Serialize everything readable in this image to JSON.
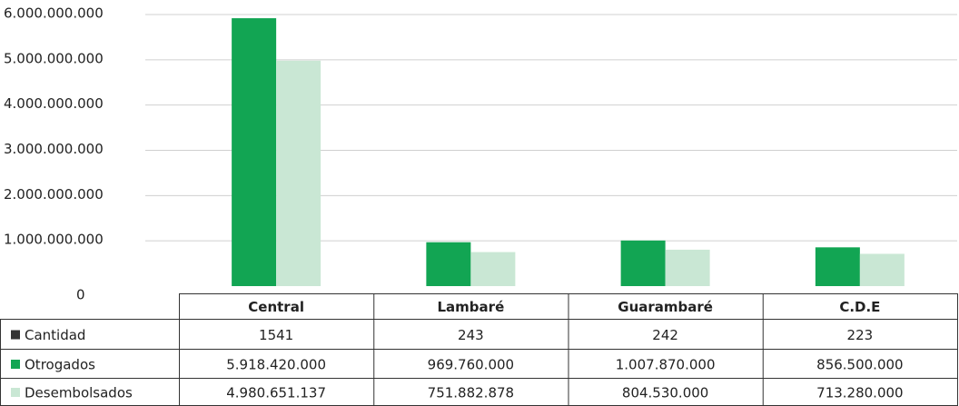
{
  "chart_data": {
    "type": "bar",
    "categories": [
      "Central",
      "Lambaré",
      "Guarambaré",
      "C.D.E"
    ],
    "series": [
      {
        "name": "Cantidad",
        "color": "#333333",
        "values": [
          1541,
          243,
          242,
          223
        ]
      },
      {
        "name": "Otrogados",
        "color": "#12a553",
        "values": [
          5918420000,
          969760000,
          1007870000,
          856500000
        ],
        "value_labels": [
          "5.918.420.000",
          "969.760.000",
          "1.007.870.000",
          "856.500.000"
        ]
      },
      {
        "name": "Desembolsados",
        "color": "#c9e7d4",
        "values": [
          4980651137,
          751882878,
          804530000,
          713280000
        ],
        "value_labels": [
          "4.980.651.137",
          "751.882.878",
          "804.530.000",
          "713.280.000"
        ]
      }
    ],
    "ylim": [
      0,
      6000000000
    ],
    "yticks": [
      0,
      {
        "value": 1000000000,
        "label": "1.000.000.000"
      },
      {
        "value": 2000000000,
        "label": "2.000.000.000"
      },
      {
        "value": 3000000000,
        "label": "3.000.000.000"
      },
      {
        "value": 4000000000,
        "label": "4.000.000.000"
      },
      {
        "value": 5000000000,
        "label": "5.000.000.000"
      },
      {
        "value": 6000000000,
        "label": "6.000.000.000"
      }
    ],
    "grid": true
  }
}
